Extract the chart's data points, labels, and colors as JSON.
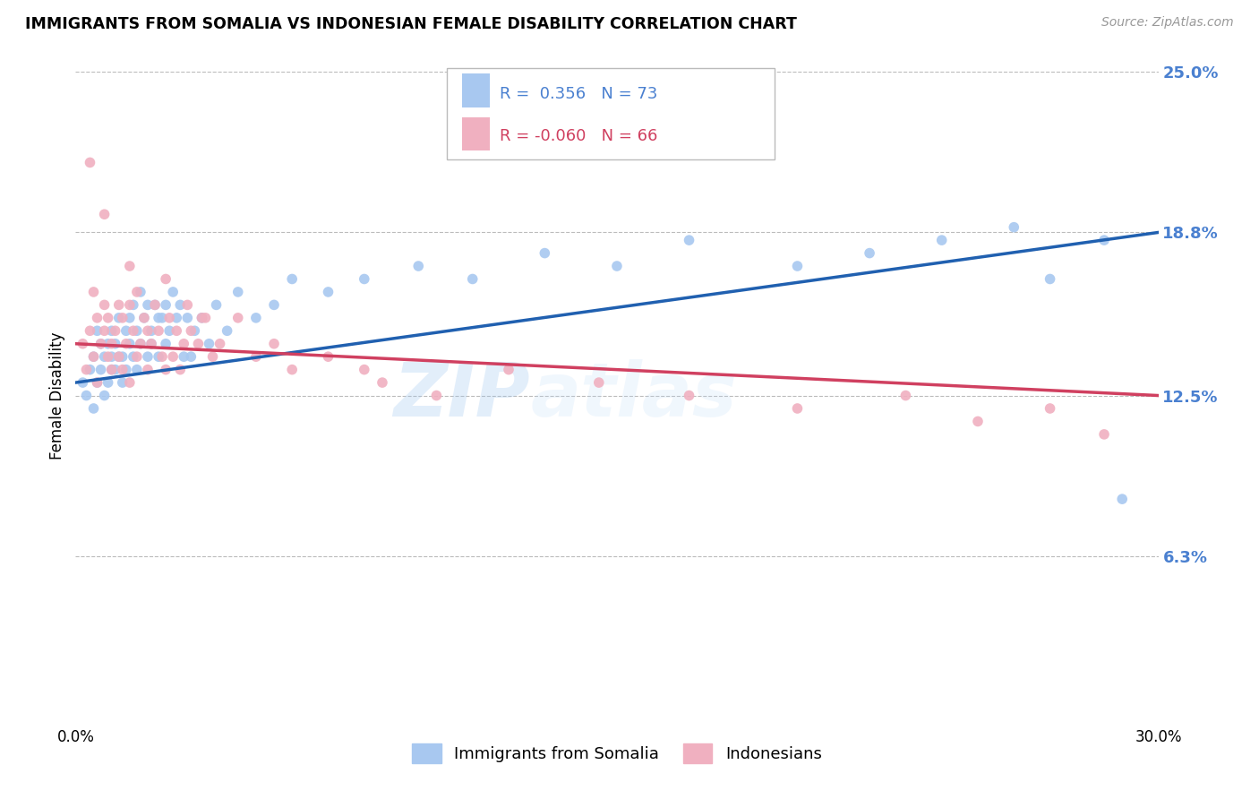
{
  "title": "IMMIGRANTS FROM SOMALIA VS INDONESIAN FEMALE DISABILITY CORRELATION CHART",
  "source_text": "Source: ZipAtlas.com",
  "ylabel": "Female Disability",
  "xlim": [
    0.0,
    30.0
  ],
  "ylim": [
    0.0,
    25.0
  ],
  "ytick_values": [
    6.3,
    12.5,
    18.8,
    25.0
  ],
  "ytick_labels": [
    "6.3%",
    "12.5%",
    "18.8%",
    "25.0%"
  ],
  "blue_R": "0.356",
  "blue_N": "73",
  "pink_R": "-0.060",
  "pink_N": "66",
  "blue_color": "#a8c8f0",
  "pink_color": "#f0b0c0",
  "blue_line_color": "#2060b0",
  "pink_line_color": "#d04060",
  "legend_label_blue": "Immigrants from Somalia",
  "legend_label_pink": "Indonesians",
  "background_color": "#ffffff",
  "grid_color": "#bbbbbb",
  "axis_label_color": "#4a80d0",
  "blue_scatter_x": [
    0.2,
    0.3,
    0.4,
    0.5,
    0.5,
    0.6,
    0.6,
    0.7,
    0.7,
    0.8,
    0.8,
    0.9,
    0.9,
    1.0,
    1.0,
    1.0,
    1.1,
    1.1,
    1.2,
    1.2,
    1.3,
    1.3,
    1.4,
    1.4,
    1.5,
    1.5,
    1.6,
    1.6,
    1.7,
    1.7,
    1.8,
    1.8,
    1.9,
    2.0,
    2.0,
    2.1,
    2.1,
    2.2,
    2.3,
    2.3,
    2.4,
    2.5,
    2.5,
    2.6,
    2.7,
    2.8,
    2.9,
    3.0,
    3.1,
    3.2,
    3.3,
    3.5,
    3.7,
    3.9,
    4.2,
    4.5,
    5.0,
    5.5,
    6.0,
    7.0,
    8.0,
    9.5,
    11.0,
    13.0,
    15.0,
    17.0,
    20.0,
    22.0,
    24.0,
    26.0,
    27.0,
    28.5,
    29.0
  ],
  "blue_scatter_y": [
    13.0,
    12.5,
    13.5,
    14.0,
    12.0,
    13.0,
    15.0,
    14.5,
    13.5,
    14.0,
    12.5,
    13.0,
    14.5,
    13.5,
    15.0,
    14.0,
    13.5,
    14.5,
    14.0,
    15.5,
    13.0,
    14.0,
    15.0,
    13.5,
    14.5,
    15.5,
    14.0,
    16.0,
    13.5,
    15.0,
    14.5,
    16.5,
    15.5,
    14.0,
    16.0,
    14.5,
    15.0,
    16.0,
    15.5,
    14.0,
    15.5,
    14.5,
    16.0,
    15.0,
    16.5,
    15.5,
    16.0,
    14.0,
    15.5,
    14.0,
    15.0,
    15.5,
    14.5,
    16.0,
    15.0,
    16.5,
    15.5,
    16.0,
    17.0,
    16.5,
    17.0,
    17.5,
    17.0,
    18.0,
    17.5,
    18.5,
    17.5,
    18.0,
    18.5,
    19.0,
    17.0,
    18.5,
    8.5
  ],
  "pink_scatter_x": [
    0.2,
    0.3,
    0.4,
    0.5,
    0.5,
    0.6,
    0.6,
    0.7,
    0.8,
    0.8,
    0.9,
    0.9,
    1.0,
    1.0,
    1.1,
    1.2,
    1.2,
    1.3,
    1.3,
    1.4,
    1.5,
    1.5,
    1.6,
    1.7,
    1.7,
    1.8,
    1.9,
    2.0,
    2.0,
    2.1,
    2.2,
    2.3,
    2.4,
    2.5,
    2.6,
    2.7,
    2.8,
    2.9,
    3.0,
    3.1,
    3.2,
    3.4,
    3.6,
    3.8,
    4.0,
    4.5,
    5.0,
    6.0,
    7.0,
    8.5,
    10.0,
    12.0,
    14.5,
    17.0,
    20.0,
    23.0,
    25.0,
    0.4,
    0.8,
    1.5,
    2.5,
    3.5,
    5.5,
    8.0,
    27.0,
    28.5
  ],
  "pink_scatter_y": [
    14.5,
    13.5,
    15.0,
    14.0,
    16.5,
    15.5,
    13.0,
    14.5,
    15.0,
    16.0,
    14.0,
    15.5,
    14.5,
    13.5,
    15.0,
    14.0,
    16.0,
    13.5,
    15.5,
    14.5,
    16.0,
    13.0,
    15.0,
    14.0,
    16.5,
    14.5,
    15.5,
    13.5,
    15.0,
    14.5,
    16.0,
    15.0,
    14.0,
    13.5,
    15.5,
    14.0,
    15.0,
    13.5,
    14.5,
    16.0,
    15.0,
    14.5,
    15.5,
    14.0,
    14.5,
    15.5,
    14.0,
    13.5,
    14.0,
    13.0,
    12.5,
    13.5,
    13.0,
    12.5,
    12.0,
    12.5,
    11.5,
    21.5,
    19.5,
    17.5,
    17.0,
    15.5,
    14.5,
    13.5,
    12.0,
    11.0
  ]
}
